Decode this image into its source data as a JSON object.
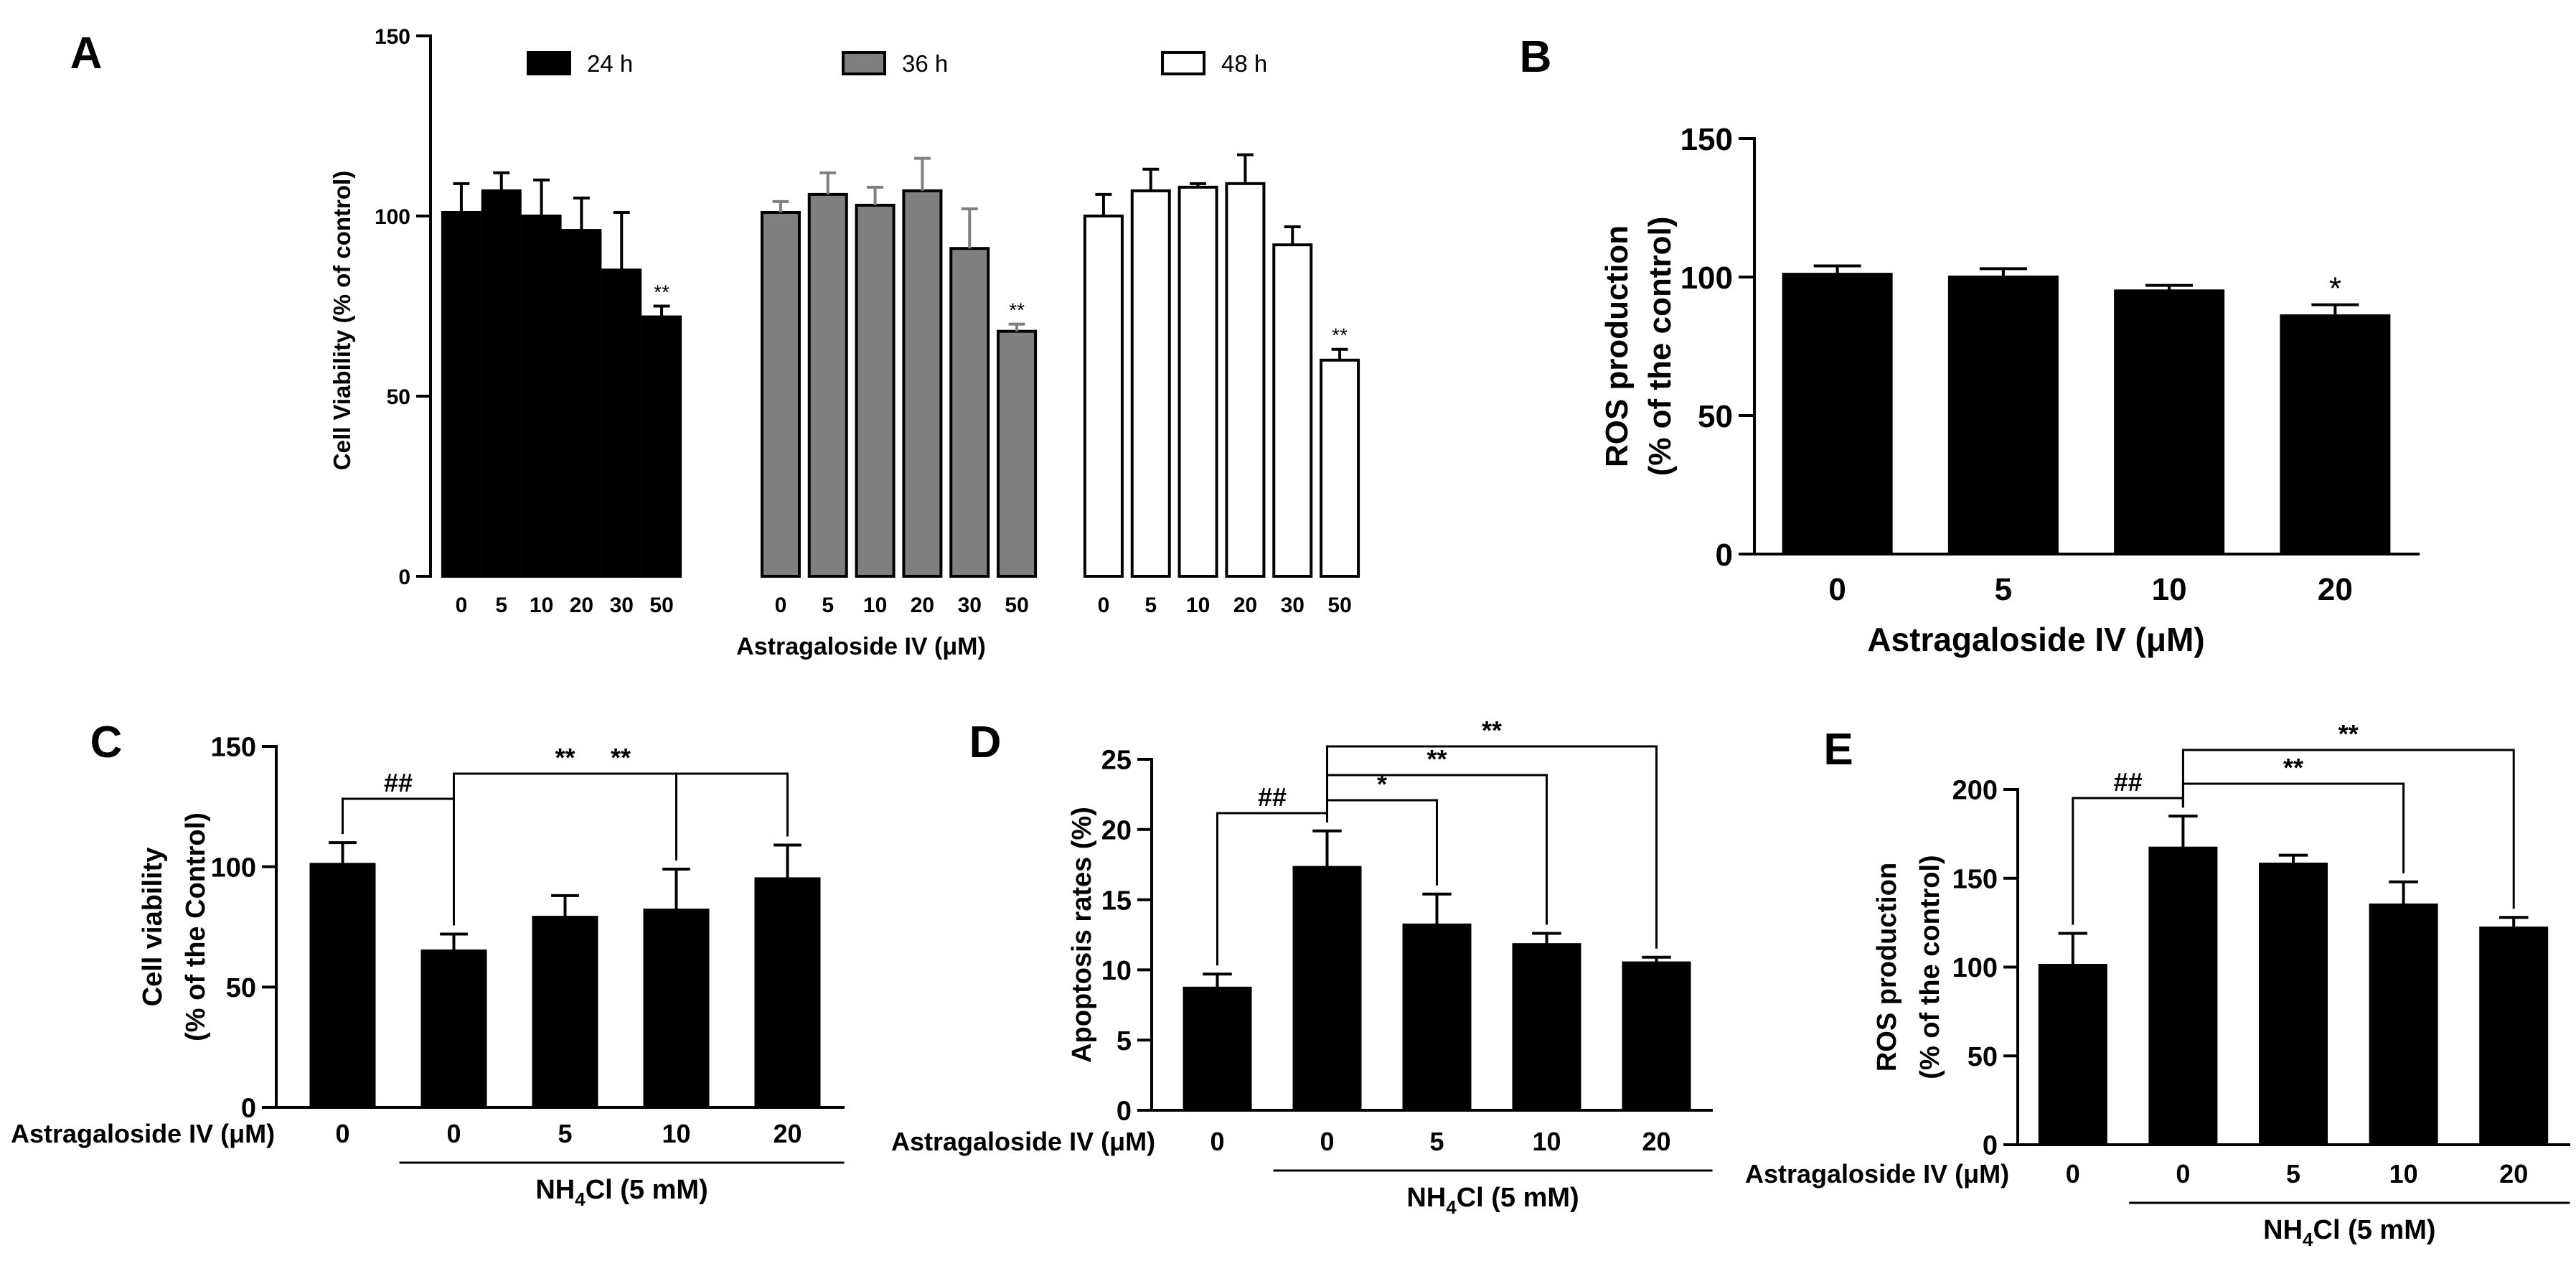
{
  "chart_data": [
    {
      "panel": "A",
      "type": "bar",
      "title": "",
      "xlabel": "Astragaloside IV (μM)",
      "ylabel": "Cell Viability (% of control)",
      "ylim": [
        0,
        150
      ],
      "yticks": [
        0,
        50,
        100,
        150
      ],
      "legend": "top",
      "series": [
        {
          "name": "24 h",
          "categories": [
            "0",
            "5",
            "10",
            "20",
            "30",
            "50"
          ],
          "values": [
            101,
            107,
            100,
            96,
            85,
            72
          ],
          "errors": [
            8,
            5,
            10,
            9,
            16,
            3
          ],
          "sig": [
            "",
            "",
            "",
            "",
            "",
            "**"
          ],
          "color": "#000000"
        },
        {
          "name": "36 h",
          "categories": [
            "0",
            "5",
            "10",
            "20",
            "30",
            "50"
          ],
          "values": [
            101,
            106,
            103,
            107,
            91,
            68
          ],
          "errors": [
            3,
            6,
            5,
            9,
            11,
            2
          ],
          "sig": [
            "",
            "",
            "",
            "",
            "",
            "**"
          ],
          "color": "#7f7f7f"
        },
        {
          "name": "48 h",
          "categories": [
            "0",
            "5",
            "10",
            "20",
            "30",
            "50"
          ],
          "values": [
            100,
            107,
            108,
            109,
            92,
            60
          ],
          "errors": [
            6,
            6,
            1,
            8,
            5,
            3
          ],
          "sig": [
            "",
            "",
            "",
            "",
            "",
            "**"
          ],
          "color": "#ffffff"
        }
      ]
    },
    {
      "panel": "B",
      "type": "bar",
      "title": "",
      "xlabel": "Astragaloside IV (μM)",
      "ylabel_lines": [
        "ROS production",
        "(% of the control)"
      ],
      "ylim": [
        0,
        150
      ],
      "yticks": [
        0,
        50,
        100,
        150
      ],
      "categories": [
        "0",
        "5",
        "10",
        "20"
      ],
      "values": [
        101,
        100,
        95,
        86
      ],
      "errors": [
        3,
        3,
        2,
        4
      ],
      "sig": [
        "",
        "",
        "",
        "*"
      ]
    },
    {
      "panel": "C",
      "type": "bar",
      "ylabel_lines": [
        "Cell viability",
        "(% of the Control)"
      ],
      "row_label": "Astragaloside IV (μM)",
      "group_label_main": "NH",
      "group_label_sub": "4",
      "group_label_rest": "Cl (5 mM)",
      "ylim": [
        0,
        150
      ],
      "yticks": [
        0,
        50,
        100,
        150
      ],
      "categories": [
        "0",
        "0",
        "5",
        "10",
        "20"
      ],
      "values": [
        101,
        65,
        79,
        82,
        95
      ],
      "errors": [
        9,
        7,
        9,
        17,
        14
      ],
      "brackets": [
        {
          "from": 0,
          "to": 1,
          "label": "##"
        },
        {
          "from": 1,
          "to": 3,
          "label": "**"
        },
        {
          "from": 1,
          "to": 4,
          "label": "**"
        }
      ]
    },
    {
      "panel": "D",
      "type": "bar",
      "ylabel_lines": [
        "Apoptosis rates (%)"
      ],
      "row_label": "Astragaloside IV (μM)",
      "group_label_main": "NH",
      "group_label_sub": "4",
      "group_label_rest": "Cl (5 mM)",
      "ylim": [
        0,
        25
      ],
      "yticks": [
        0,
        5,
        10,
        15,
        20,
        25
      ],
      "categories": [
        "0",
        "0",
        "5",
        "10",
        "20"
      ],
      "values": [
        8.7,
        17.3,
        13.2,
        11.8,
        10.5
      ],
      "errors": [
        1.0,
        2.6,
        2.2,
        0.8,
        0.4
      ],
      "brackets": [
        {
          "from": 0,
          "to": 1,
          "label": "##"
        },
        {
          "from": 1,
          "to": 2,
          "label": "*"
        },
        {
          "from": 1,
          "to": 3,
          "label": "**"
        },
        {
          "from": 1,
          "to": 4,
          "label": "**"
        }
      ]
    },
    {
      "panel": "E",
      "type": "bar",
      "ylabel_lines": [
        "ROS production",
        "(% of the control)"
      ],
      "row_label": "Astragaloside IV (μM)",
      "group_label_main": "NH",
      "group_label_sub": "4",
      "group_label_rest": "Cl (5 mM)",
      "ylim": [
        0,
        200
      ],
      "yticks": [
        0,
        50,
        100,
        150,
        200
      ],
      "categories": [
        "0",
        "0",
        "5",
        "10",
        "20"
      ],
      "values": [
        101,
        167,
        158,
        135,
        122
      ],
      "errors": [
        18,
        18,
        5,
        13,
        6
      ],
      "brackets": [
        {
          "from": 0,
          "to": 1,
          "label": "##"
        },
        {
          "from": 1,
          "to": 3,
          "label": "**"
        },
        {
          "from": 1,
          "to": 4,
          "label": "**"
        }
      ]
    }
  ]
}
